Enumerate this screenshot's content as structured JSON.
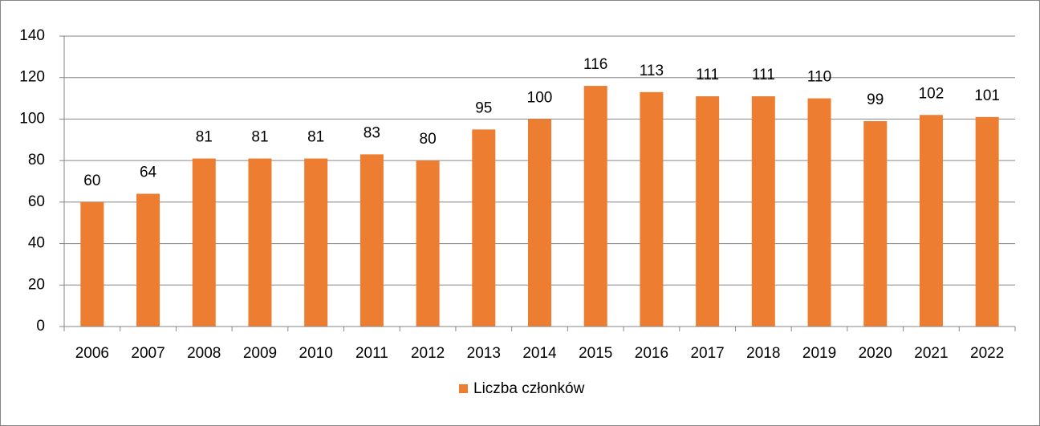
{
  "chart_data": {
    "type": "bar",
    "categories": [
      "2006",
      "2007",
      "2008",
      "2009",
      "2010",
      "2011",
      "2012",
      "2013",
      "2014",
      "2015",
      "2016",
      "2017",
      "2018",
      "2019",
      "2020",
      "2021",
      "2022"
    ],
    "series": [
      {
        "name": "Liczba członków",
        "color": "#ed7d31",
        "values": [
          60,
          64,
          81,
          81,
          81,
          83,
          80,
          95,
          100,
          116,
          113,
          111,
          111,
          110,
          99,
          102,
          101
        ]
      }
    ],
    "ylim": [
      0,
      140
    ],
    "yticks": [
      0,
      20,
      40,
      60,
      80,
      100,
      120,
      140
    ],
    "grid": true,
    "legend": "bottom"
  }
}
